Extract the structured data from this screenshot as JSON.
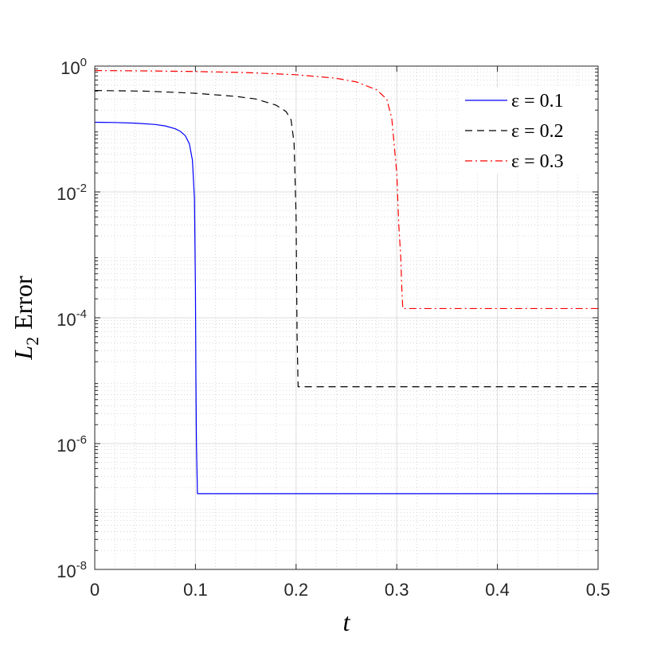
{
  "chart_data": {
    "type": "line",
    "xlabel": "t",
    "ylabel": {
      "symbol": "L",
      "subscript": "2",
      "text": "Error"
    },
    "xlim": [
      0,
      0.5
    ],
    "ylim": [
      1e-08,
      1
    ],
    "yscale": "log",
    "grid": true,
    "minor_grid": true,
    "legend_position": "top-right",
    "x_ticks": [
      "0",
      "0.1",
      "0.2",
      "0.3",
      "0.4",
      "0.5"
    ],
    "y_ticks": [
      {
        "base": "10",
        "exp": "-8"
      },
      {
        "base": "10",
        "exp": "-6"
      },
      {
        "base": "10",
        "exp": "-4"
      },
      {
        "base": "10",
        "exp": "-2"
      },
      {
        "base": "10",
        "exp": "0"
      }
    ],
    "series": [
      {
        "name": "ε = 0.1",
        "color": "#0000ff",
        "dash": "solid",
        "x": [
          0,
          0.02,
          0.04,
          0.06,
          0.07,
          0.08,
          0.085,
          0.09,
          0.094,
          0.097,
          0.099,
          0.1,
          0.1005,
          0.101,
          0.102,
          0.5
        ],
        "y": [
          0.128,
          0.127,
          0.124,
          0.118,
          0.112,
          0.101,
          0.092,
          0.078,
          0.058,
          0.032,
          0.008,
          0.0003,
          1e-05,
          1e-06,
          1.6e-07,
          1.6e-07
        ]
      },
      {
        "name": "ε = 0.2",
        "color": "#000000",
        "dash": "dashed",
        "x": [
          0,
          0.05,
          0.1,
          0.14,
          0.16,
          0.18,
          0.19,
          0.195,
          0.198,
          0.2,
          0.201,
          0.202,
          0.5
        ],
        "y": [
          0.41,
          0.4,
          0.37,
          0.33,
          0.3,
          0.24,
          0.19,
          0.14,
          0.06,
          0.004,
          5e-05,
          8e-06,
          8e-06
        ]
      },
      {
        "name": "ε = 0.3",
        "color": "#ff0000",
        "dash": "dashdot",
        "x": [
          0,
          0.05,
          0.1,
          0.15,
          0.2,
          0.24,
          0.26,
          0.28,
          0.29,
          0.295,
          0.3,
          0.302,
          0.304,
          0.305,
          0.306,
          0.5
        ],
        "y": [
          0.85,
          0.84,
          0.82,
          0.79,
          0.73,
          0.64,
          0.56,
          0.42,
          0.3,
          0.15,
          0.02,
          0.003,
          0.0009,
          0.0003,
          0.00014,
          0.00014
        ]
      }
    ]
  }
}
